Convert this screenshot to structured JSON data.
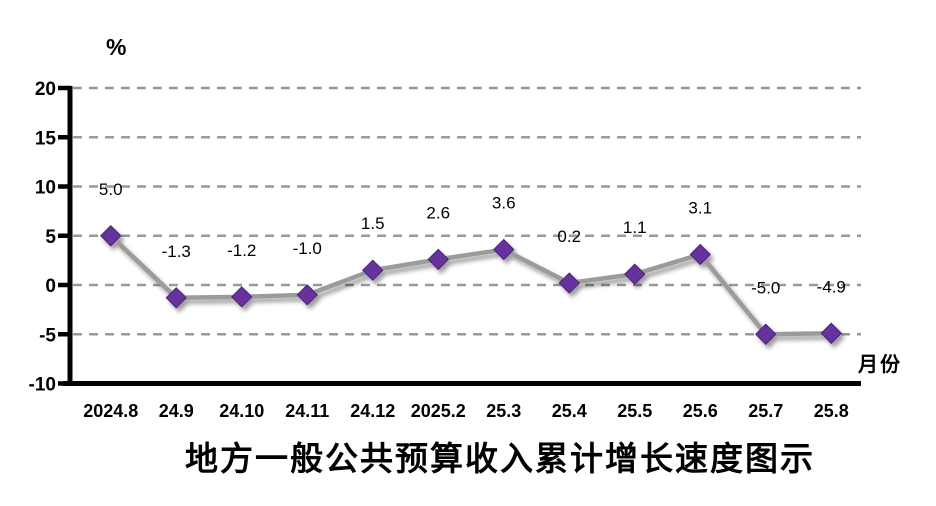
{
  "chart_data": {
    "type": "line",
    "title": "地方一般公共预算收入累计增长速度图示",
    "unit_label": "%",
    "xlabel": "月份",
    "categories": [
      "2024.8",
      "24.9",
      "24.10",
      "24.11",
      "24.12",
      "2025.2",
      "25.3",
      "25.4",
      "25.5",
      "25.6",
      "25.7",
      "25.8"
    ],
    "values": [
      5.0,
      -1.3,
      -1.2,
      -1.0,
      1.5,
      2.6,
      3.6,
      0.2,
      1.1,
      3.1,
      -5.0,
      -4.9
    ],
    "data_labels": [
      "5.0",
      "-1.3",
      "-1.2",
      "-1.0",
      "1.5",
      "2.6",
      "3.6",
      "0.2",
      "1.1",
      "3.1",
      "-5.0",
      "-4.9"
    ],
    "y_ticks": [
      20,
      15,
      10,
      5,
      0,
      -5,
      -10
    ],
    "ylim": [
      -10,
      20
    ],
    "grid": "horizontal-dashed",
    "legend": "none",
    "series_name": "地方一般公共预算收入累计增长速度",
    "colors": {
      "marker": "#66329E",
      "marker_edge": "#4B2375",
      "line": "#9B9B9B",
      "grid": "#999999",
      "axis": "#000000",
      "text": "#000000",
      "background": "#ffffff"
    }
  }
}
